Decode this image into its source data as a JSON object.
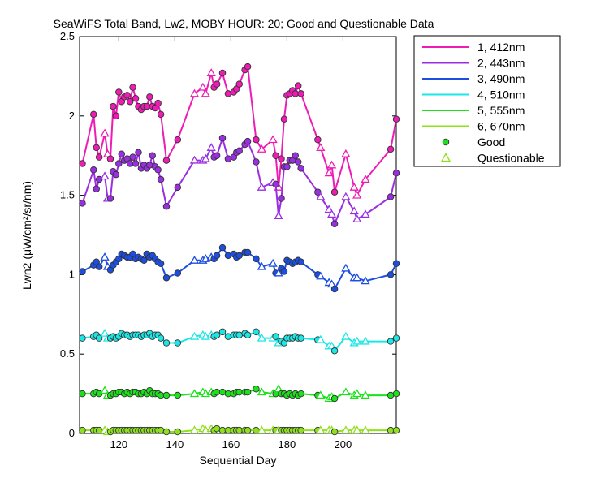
{
  "chart_data": {
    "type": "line",
    "title": "SeaWiFS Total Band, Lw2, MOBY HOUR: 20;  Good and Questionable Data",
    "xlabel": "Sequential Day",
    "ylabel": "Lwn2 (μW/cm²/sr/nm)",
    "xlim": [
      106,
      219
    ],
    "ylim": [
      0,
      2.5
    ],
    "xticks": [
      120,
      140,
      160,
      180,
      200
    ],
    "yticks": [
      0,
      0.5,
      1,
      1.5,
      2,
      2.5
    ],
    "ytick_labels": [
      "0",
      "0.5",
      "1",
      "1.5",
      "2",
      "2.5"
    ],
    "grid": false,
    "legend_position": "outside-right",
    "x": [
      107,
      111,
      112,
      113,
      115,
      116,
      117,
      118,
      119,
      120,
      121,
      122,
      123,
      124,
      125,
      126,
      127,
      128,
      129,
      130,
      131,
      132,
      133,
      134,
      135,
      137,
      141,
      147,
      150,
      151,
      153,
      154,
      155,
      157,
      159,
      161,
      162,
      163,
      165,
      166,
      169,
      171,
      175,
      176,
      177,
      178,
      179,
      180,
      181,
      182,
      183,
      184,
      185,
      191,
      192,
      195,
      196,
      197,
      201,
      204,
      205,
      208,
      217,
      219
    ],
    "quality": [
      "G",
      "G",
      "G",
      "G",
      "Q",
      "Q",
      "G",
      "G",
      "G",
      "G",
      "G",
      "G",
      "G",
      "G",
      "G",
      "G",
      "G",
      "G",
      "G",
      "G",
      "G",
      "G",
      "G",
      "G",
      "G",
      "G",
      "G",
      "Q",
      "Q",
      "Q",
      "Q",
      "G",
      "G",
      "G",
      "G",
      "G",
      "G",
      "G",
      "G",
      "G",
      "G",
      "Q",
      "Q",
      "G",
      "Q",
      "G",
      "G",
      "G",
      "G",
      "G",
      "G",
      "G",
      "G",
      "G",
      "Q",
      "Q",
      "Q",
      "G",
      "Q",
      "Q",
      "Q",
      "Q",
      "G",
      "G"
    ],
    "series": [
      {
        "name": "1, 412nm",
        "color": "#ee1cb4",
        "values": [
          1.7,
          2.01,
          1.8,
          1.74,
          1.89,
          1.76,
          1.73,
          2.06,
          2.0,
          2.15,
          2.09,
          2.12,
          2.13,
          2.09,
          2.18,
          2.11,
          2.06,
          2.04,
          2.06,
          2.06,
          2.12,
          2.06,
          2.05,
          2.08,
          2.01,
          1.72,
          1.85,
          2.14,
          2.18,
          2.14,
          2.27,
          2.18,
          2.2,
          2.27,
          2.14,
          2.15,
          2.17,
          2.2,
          2.29,
          2.31,
          1.85,
          1.79,
          1.85,
          1.75,
          1.55,
          1.73,
          1.98,
          2.13,
          2.14,
          2.16,
          2.14,
          2.19,
          2.14,
          1.85,
          1.8,
          1.64,
          1.69,
          1.52,
          1.76,
          1.55,
          1.5,
          1.6,
          1.79,
          1.98
        ]
      },
      {
        "name": "2, 443nm",
        "color": "#9a2ee2",
        "values": [
          1.45,
          1.66,
          1.54,
          1.6,
          1.62,
          1.48,
          1.48,
          1.65,
          1.63,
          1.7,
          1.76,
          1.72,
          1.73,
          1.7,
          1.74,
          1.7,
          1.77,
          1.67,
          1.69,
          1.67,
          1.69,
          1.75,
          1.68,
          1.66,
          1.6,
          1.43,
          1.55,
          1.72,
          1.72,
          1.73,
          1.8,
          1.74,
          1.75,
          1.86,
          1.73,
          1.74,
          1.77,
          1.78,
          1.82,
          1.84,
          1.71,
          1.55,
          1.58,
          1.57,
          1.37,
          1.48,
          1.68,
          1.68,
          1.72,
          1.72,
          1.75,
          1.71,
          1.67,
          1.52,
          1.49,
          1.41,
          1.38,
          1.32,
          1.49,
          1.4,
          1.35,
          1.38,
          1.49,
          1.64
        ]
      },
      {
        "name": "3, 490nm",
        "color": "#1c4ee2",
        "values": [
          1.02,
          1.06,
          1.08,
          1.05,
          1.11,
          1.05,
          1.03,
          1.06,
          1.08,
          1.1,
          1.13,
          1.12,
          1.11,
          1.11,
          1.13,
          1.1,
          1.11,
          1.1,
          1.09,
          1.13,
          1.11,
          1.12,
          1.1,
          1.08,
          1.07,
          0.98,
          1.01,
          1.09,
          1.09,
          1.1,
          1.11,
          1.1,
          1.12,
          1.17,
          1.12,
          1.13,
          1.11,
          1.12,
          1.14,
          1.14,
          1.1,
          1.05,
          1.07,
          1.01,
          1.01,
          1.04,
          1.02,
          1.09,
          1.08,
          1.07,
          1.08,
          1.09,
          1.08,
          1.0,
          0.99,
          0.95,
          0.94,
          0.91,
          1.04,
          0.98,
          0.98,
          0.96,
          1.0,
          1.07
        ]
      },
      {
        "name": "4, 510nm",
        "color": "#1ce6e6",
        "values": [
          0.6,
          0.61,
          0.62,
          0.6,
          0.63,
          0.6,
          0.6,
          0.61,
          0.6,
          0.61,
          0.63,
          0.62,
          0.62,
          0.61,
          0.62,
          0.62,
          0.62,
          0.61,
          0.62,
          0.62,
          0.63,
          0.61,
          0.62,
          0.62,
          0.6,
          0.57,
          0.57,
          0.61,
          0.62,
          0.61,
          0.62,
          0.61,
          0.62,
          0.64,
          0.61,
          0.62,
          0.62,
          0.62,
          0.63,
          0.62,
          0.64,
          0.6,
          0.6,
          0.61,
          0.57,
          0.58,
          0.57,
          0.6,
          0.6,
          0.6,
          0.61,
          0.6,
          0.6,
          0.59,
          0.59,
          0.55,
          0.55,
          0.52,
          0.61,
          0.57,
          0.58,
          0.58,
          0.58,
          0.6
        ]
      },
      {
        "name": "5, 555nm",
        "color": "#1ce21c",
        "values": [
          0.25,
          0.25,
          0.26,
          0.25,
          0.27,
          0.24,
          0.24,
          0.25,
          0.25,
          0.26,
          0.26,
          0.25,
          0.26,
          0.25,
          0.26,
          0.26,
          0.25,
          0.25,
          0.26,
          0.25,
          0.27,
          0.25,
          0.25,
          0.25,
          0.24,
          0.24,
          0.24,
          0.25,
          0.26,
          0.25,
          0.26,
          0.25,
          0.26,
          0.26,
          0.25,
          0.25,
          0.26,
          0.26,
          0.26,
          0.26,
          0.28,
          0.26,
          0.25,
          0.25,
          0.28,
          0.25,
          0.25,
          0.24,
          0.25,
          0.24,
          0.25,
          0.24,
          0.25,
          0.24,
          0.24,
          0.22,
          0.23,
          0.22,
          0.26,
          0.24,
          0.25,
          0.24,
          0.24,
          0.25
        ]
      },
      {
        "name": "6, 670nm",
        "color": "#8ee21c",
        "values": [
          0.02,
          0.02,
          0.02,
          0.02,
          0.02,
          0.01,
          0.01,
          0.02,
          0.02,
          0.02,
          0.02,
          0.02,
          0.02,
          0.02,
          0.02,
          0.02,
          0.02,
          0.02,
          0.02,
          0.02,
          0.02,
          0.02,
          0.02,
          0.02,
          0.02,
          0.01,
          0.01,
          0.02,
          0.03,
          0.02,
          0.03,
          0.02,
          0.03,
          0.02,
          0.02,
          0.02,
          0.02,
          0.02,
          0.02,
          0.02,
          0.02,
          0.02,
          0.02,
          0.02,
          0.02,
          0.02,
          0.02,
          0.02,
          0.02,
          0.02,
          0.02,
          0.02,
          0.02,
          0.02,
          0.02,
          0.02,
          0.02,
          0.01,
          0.02,
          0.02,
          0.02,
          0.02,
          0.02,
          0.02
        ]
      }
    ],
    "markers": [
      {
        "name": "Good",
        "shape": "circle",
        "color": "#1ce21c"
      },
      {
        "name": "Questionable",
        "shape": "triangle",
        "color": "#8ee21c"
      }
    ]
  }
}
